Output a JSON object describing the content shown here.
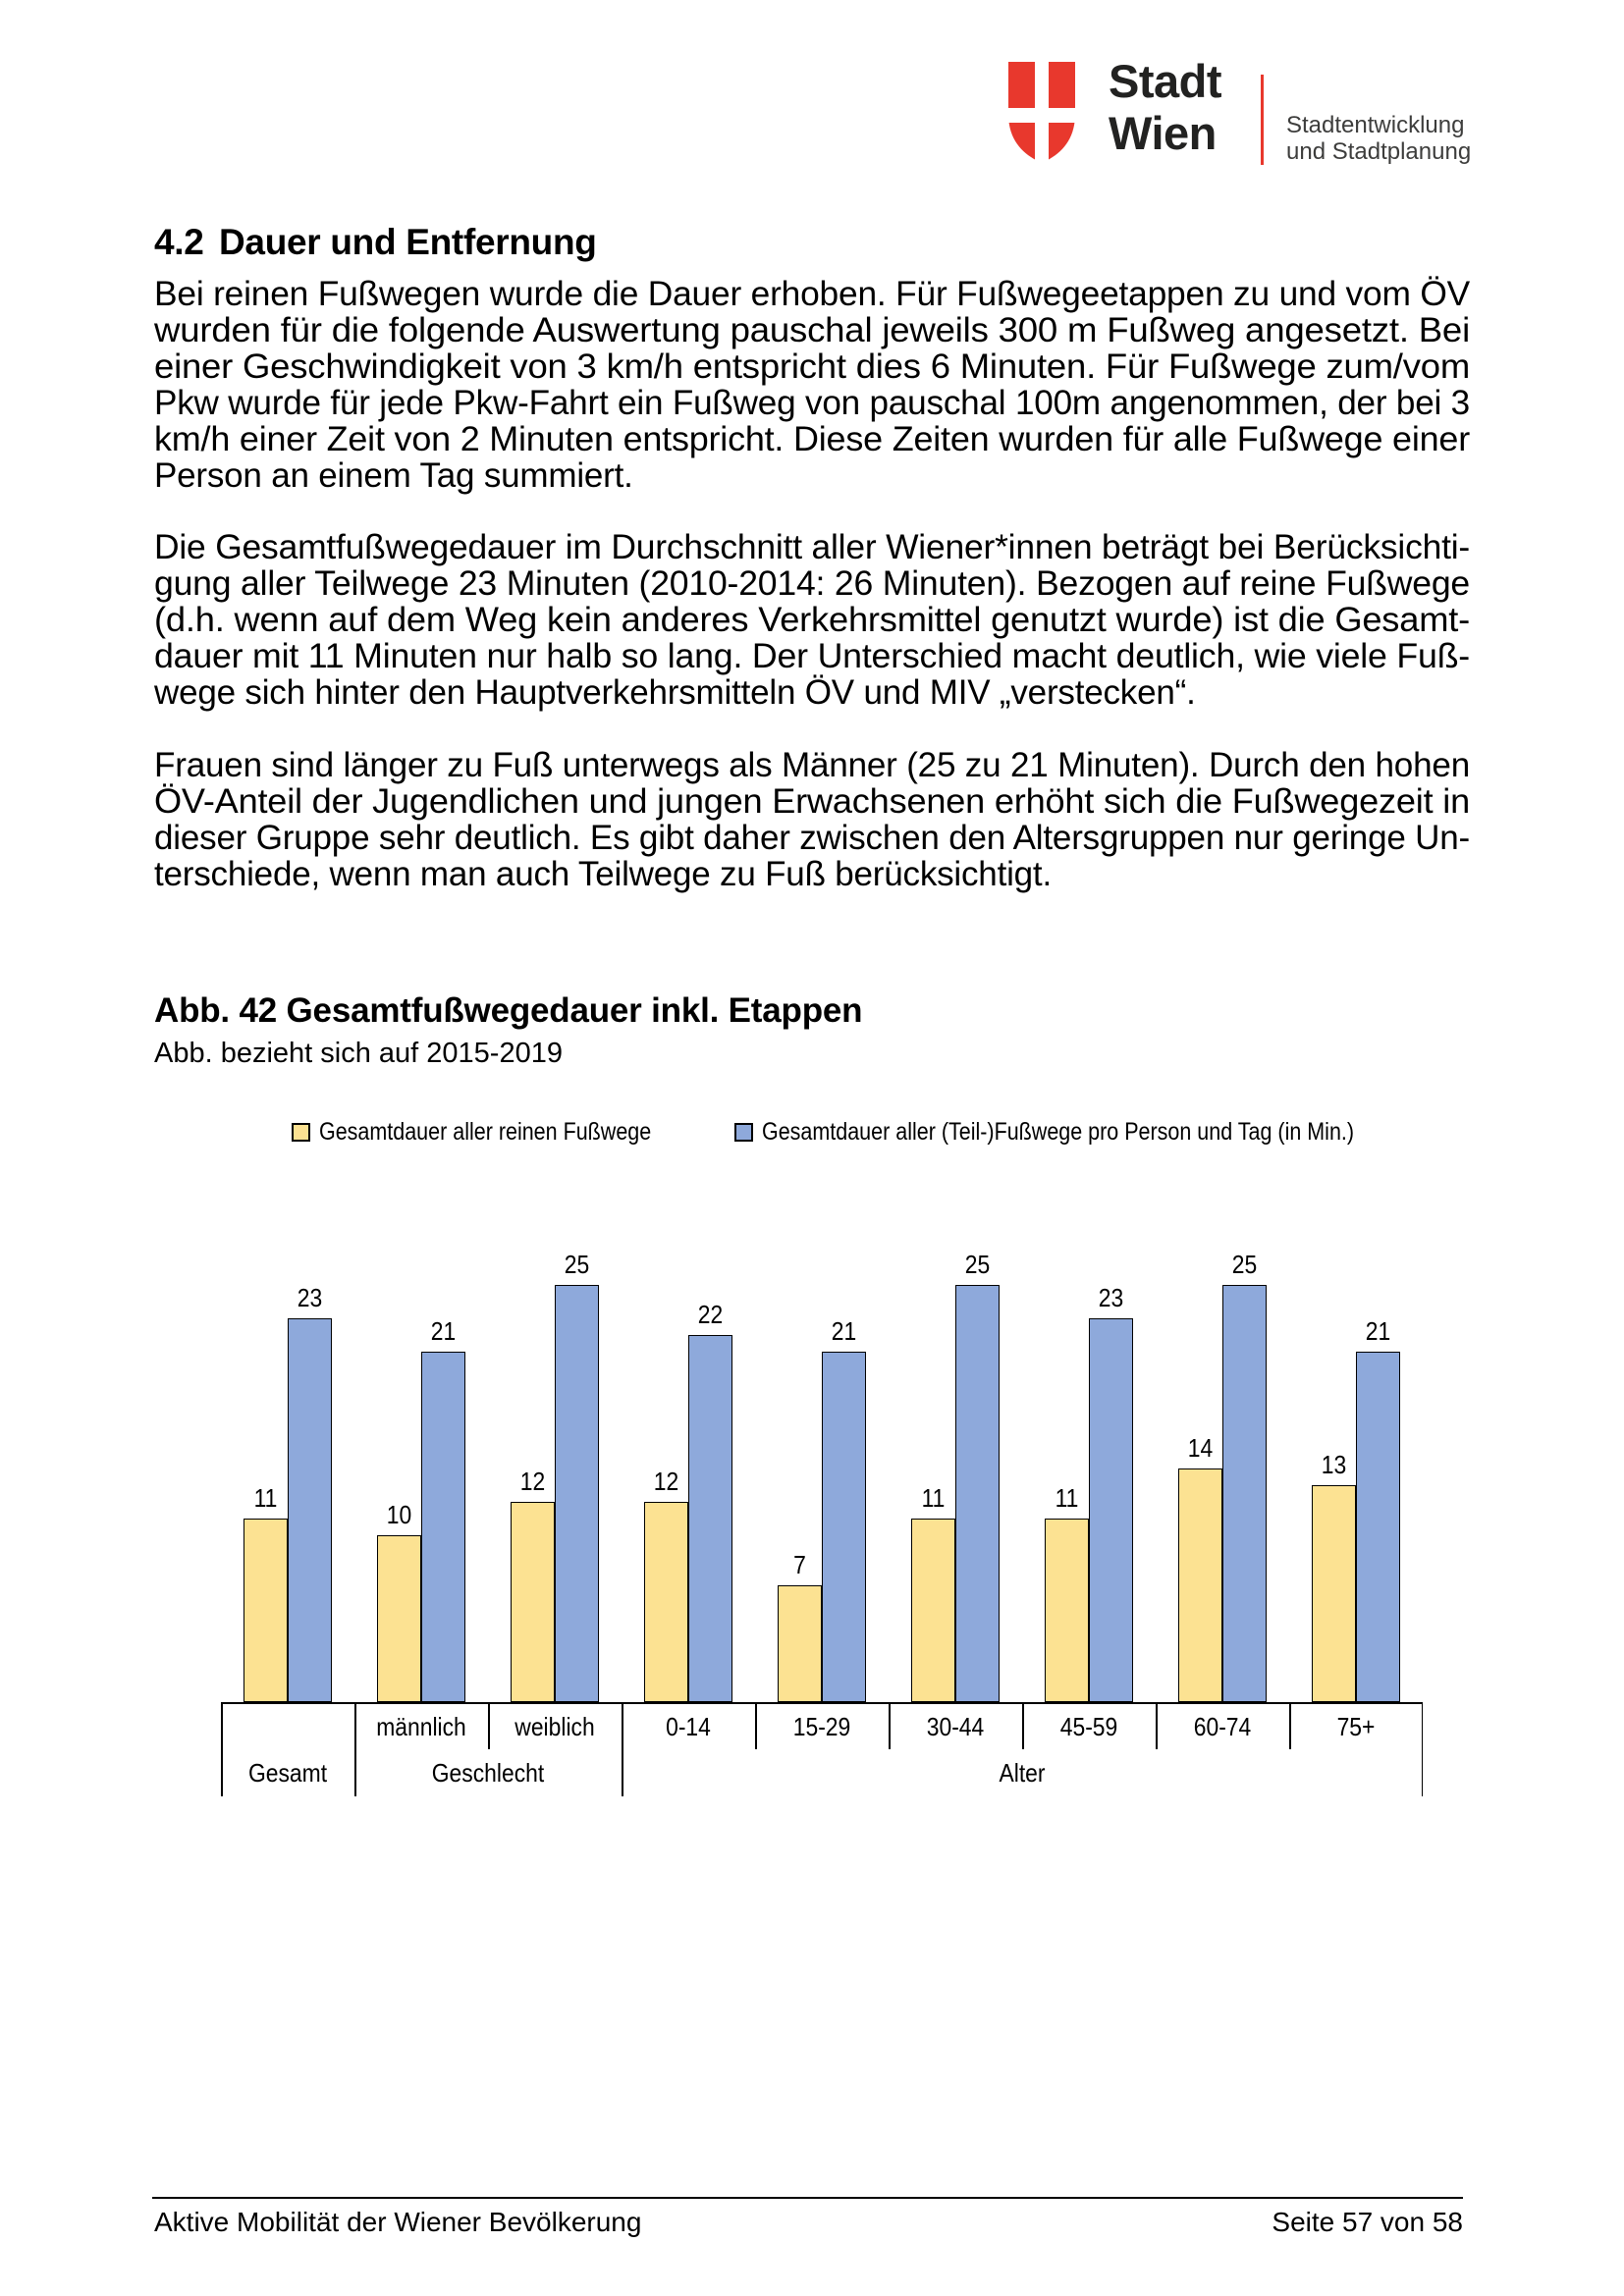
{
  "header": {
    "brand_line1": "Stadt",
    "brand_line2": "Wien",
    "dept_line1": "Stadtentwicklung",
    "dept_line2": "und Stadtplanung",
    "brand_red": "#e8382d"
  },
  "section": {
    "number": "4.2",
    "title": "Dauer und Entfernung"
  },
  "paragraphs": [
    {
      "lines": [
        "Bei reinen Fußwegen wurde die Dauer erhoben. Für Fußwegeetappen zu und vom ÖV",
        "wurden für die folgende Auswertung pauschal jeweils 300 m Fußweg angesetzt. Bei",
        "einer Geschwindigkeit von 3 km/h entspricht dies 6 Minuten. Für Fußwege zum/vom",
        "Pkw wurde für jede Pkw-Fahrt ein Fußweg von pauschal 100m angenommen, der bei 3",
        "km/h einer Zeit von 2 Minuten entspricht. Diese Zeiten wurden für alle Fußwege einer",
        "Person an einem Tag summiert."
      ]
    },
    {
      "lines": [
        "Die Gesamtfußwegedauer im Durchschnitt aller Wiener*innen beträgt bei Berücksichti-",
        "gung aller Teilwege 23 Minuten (2010-2014: 26 Minuten). Bezogen auf reine Fußwege",
        "(d.h. wenn auf dem Weg kein anderes Verkehrsmittel genutzt wurde) ist die Gesamt-",
        "dauer mit 11 Minuten nur halb so lang. Der Unterschied macht deutlich, wie viele Fuß-",
        "wege sich hinter den Hauptverkehrsmitteln ÖV und MIV „verstecken“."
      ]
    },
    {
      "lines": [
        "Frauen sind länger zu Fuß unterwegs als Männer (25 zu 21 Minuten). Durch den hohen",
        "ÖV-Anteil der Jugendlichen und jungen Erwachsenen erhöht sich die Fußwegezeit in",
        "dieser Gruppe sehr deutlich. Es gibt daher zwischen den Altersgruppen nur geringe Un-",
        "terschiede, wenn man auch Teilwege zu Fuß berücksichtigt."
      ]
    }
  ],
  "figure": {
    "title": "Abb. 42 Gesamtfußwegedauer inkl. Etappen",
    "subtitle": "Abb. bezieht sich auf 2015-2019"
  },
  "chart_data": {
    "type": "bar",
    "title": "Abb. 42 Gesamtfußwegedauer inkl. Etappen",
    "categories": [
      "Gesamt",
      "männlich",
      "weiblich",
      "0-14",
      "15-29",
      "30-44",
      "45-59",
      "60-74",
      "75+"
    ],
    "category_groups": [
      {
        "label": "Gesamt",
        "span": 1
      },
      {
        "label": "Geschlecht",
        "span": 2
      },
      {
        "label": "Alter",
        "span": 6
      }
    ],
    "series": [
      {
        "name": "Gesamtdauer aller reinen Fußwege",
        "color": "#fce292",
        "values": [
          11,
          10,
          12,
          12,
          7,
          11,
          11,
          14,
          13
        ]
      },
      {
        "name": "Gesamtdauer aller (Teil-)Fußwege pro Person und Tag (in Min.)",
        "color": "#8ea9db",
        "values": [
          23,
          21,
          25,
          22,
          21,
          25,
          23,
          25,
          21
        ]
      }
    ],
    "ylim": [
      0,
      26
    ],
    "value_labels": true,
    "legend_position": "top",
    "grid": false,
    "bar_border_color": "#000000"
  },
  "footer": {
    "left": "Aktive Mobilität der Wiener Bevölkerung",
    "right": "Seite 57 von 58"
  }
}
